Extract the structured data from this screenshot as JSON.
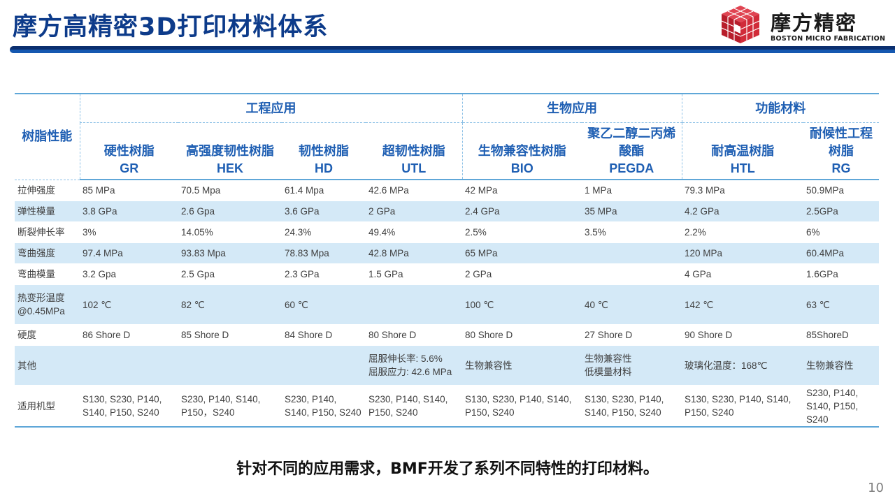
{
  "slide": {
    "title": "摩方高精密3D打印材料体系",
    "page_number": "10",
    "footnote": "针对不同的应用需求，BMF开发了系列不同特性的打印材料。"
  },
  "logo": {
    "name_cn": "摩方精密",
    "name_en": "BOSTON MICRO FABRICATION"
  },
  "colors": {
    "title": "#0d3b8a",
    "header_text": "#1f5fb3",
    "row_alt": "#d4e9f7",
    "logo_red": "#c8202f"
  },
  "table": {
    "row_header": "树脂性能",
    "groups": [
      "工程应用",
      "生物应用",
      "功能材料"
    ],
    "materials": [
      {
        "name": "硬性树脂",
        "code": "GR"
      },
      {
        "name": "高强度韧性树脂",
        "code": "HEK"
      },
      {
        "name": "韧性树脂",
        "code": "HD"
      },
      {
        "name": "超韧性树脂",
        "code": "UTL"
      },
      {
        "name": "生物兼容性树脂",
        "code": "BIO"
      },
      {
        "name": "聚乙二醇二丙烯酸酯",
        "code": "PEGDA"
      },
      {
        "name": "耐高温树脂",
        "code": "HTL"
      },
      {
        "name": "耐候性工程树脂",
        "code": "RG"
      }
    ],
    "rows": [
      {
        "label": "拉伸强度",
        "values": [
          "85 MPa",
          "70.5 Mpa",
          "61.4 Mpa",
          "42.6 MPa",
          "42 MPa",
          "1 MPa",
          "79.3 MPa",
          "50.9MPa"
        ]
      },
      {
        "label": "弹性模量",
        "values": [
          "3.8 GPa",
          "2.6 Gpa",
          "3.6 GPa",
          "2 GPa",
          "2.4 GPa",
          "35 MPa",
          "4.2 GPa",
          "2.5GPa"
        ]
      },
      {
        "label": "断裂伸长率",
        "values": [
          "3%",
          "14.05%",
          "24.3%",
          "49.4%",
          "2.5%",
          "3.5%",
          "2.2%",
          "6%"
        ]
      },
      {
        "label": "弯曲强度",
        "values": [
          "97.4 MPa",
          "93.83 Mpa",
          "78.83 Mpa",
          "42.8 MPa",
          "65 MPa",
          "",
          "120 MPa",
          "60.4MPa"
        ]
      },
      {
        "label": "弯曲模量",
        "values": [
          "3.2 Gpa",
          "2.5 Gpa",
          "2.3 GPa",
          "1.5 GPa",
          "2 GPa",
          "",
          "4 GPa",
          "1.6GPa"
        ]
      },
      {
        "label": "热变形温度\n@0.45MPa",
        "values": [
          "102 ℃",
          "82 ℃",
          "60 ℃",
          "",
          "100 ℃",
          "40 ℃",
          "142 ℃",
          "63 ℃"
        ]
      },
      {
        "label": "硬度",
        "values": [
          "86 Shore D",
          "85 Shore D",
          "84 Shore D",
          "80 Shore D",
          "80 Shore D",
          "27 Shore D",
          "90 Shore D",
          "85ShoreD"
        ]
      },
      {
        "label": "其他",
        "values": [
          "",
          "",
          "",
          "屈服伸长率: 5.6%\n屈服应力: 42.6 MPa",
          "生物兼容性",
          "生物兼容性\n低模量材料",
          "玻璃化温度：168℃",
          "生物兼容性"
        ]
      },
      {
        "label": "适用机型",
        "values": [
          "S130, S230, P140, S140, P150, S240",
          "S230, P140, S140, P150，S240",
          "S230, P140, S140, P150, S240",
          "S230, P140, S140, P150, S240",
          "S130, S230, P140, S140, P150, S240",
          "S130, S230, P140, S140, P150, S240",
          "S130, S230, P140, S140, P150, S240",
          "S230, P140, S140, P150, S240"
        ]
      }
    ]
  }
}
